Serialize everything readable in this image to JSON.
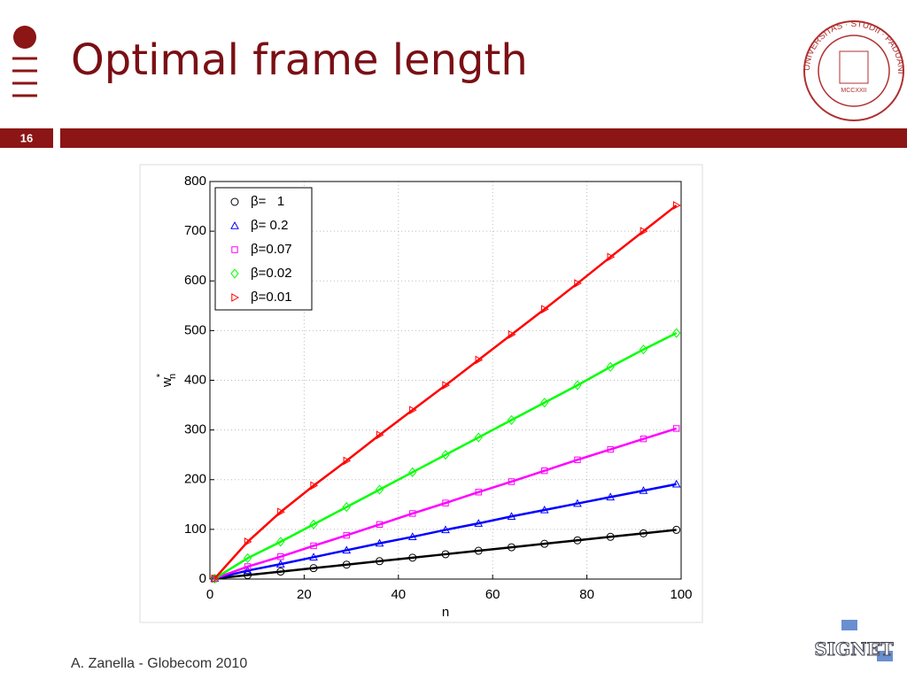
{
  "slide": {
    "title": "Optimal frame length",
    "number": "16",
    "footer": "A. Zanella - Globecom 2010",
    "seal": {
      "text": "UNIVERSITAS · STUDII · PADUANI",
      "year": "MCCXXII"
    },
    "signet": "SIGNET"
  },
  "chart_data": {
    "type": "line",
    "x_label": "n",
    "y_label": {
      "base": "w",
      "sup": "*",
      "sub": "n"
    },
    "x": [
      1,
      8,
      15,
      22,
      29,
      36,
      43,
      50,
      57,
      64,
      71,
      78,
      85,
      92,
      99
    ],
    "series": [
      {
        "name": "β=   1",
        "color": "#000000",
        "marker": "circle",
        "values": [
          1,
          8,
          15,
          22,
          29,
          36,
          43,
          50,
          57,
          64,
          71,
          78,
          85,
          92,
          99
        ]
      },
      {
        "name": "β= 0.2",
        "color": "#0000ff",
        "marker": "triangle-up",
        "values": [
          1,
          17,
          30,
          44,
          58,
          72,
          85,
          99,
          112,
          126,
          139,
          152,
          165,
          178,
          191
        ]
      },
      {
        "name": "β=0.07",
        "color": "#ff00ff",
        "marker": "square",
        "values": [
          1,
          25,
          45,
          67,
          88,
          110,
          132,
          153,
          175,
          196,
          218,
          240,
          261,
          282,
          303
        ]
      },
      {
        "name": "β=0.02",
        "color": "#00ff00",
        "marker": "diamond",
        "values": [
          1,
          42,
          75,
          110,
          145,
          180,
          215,
          250,
          285,
          320,
          355,
          390,
          427,
          462,
          495
        ]
      },
      {
        "name": "β=0.01",
        "color": "#ff0000",
        "marker": "triangle-right",
        "values": [
          1,
          75,
          135,
          188,
          238,
          290,
          340,
          390,
          441,
          492,
          543,
          595,
          648,
          700,
          752
        ]
      }
    ],
    "xlim": [
      0,
      100
    ],
    "xticks": [
      0,
      20,
      40,
      60,
      80,
      100
    ],
    "ylim": [
      0,
      800
    ],
    "yticks": [
      0,
      100,
      200,
      300,
      400,
      500,
      600,
      700,
      800
    ],
    "grid": true,
    "legend": "upper-left"
  }
}
